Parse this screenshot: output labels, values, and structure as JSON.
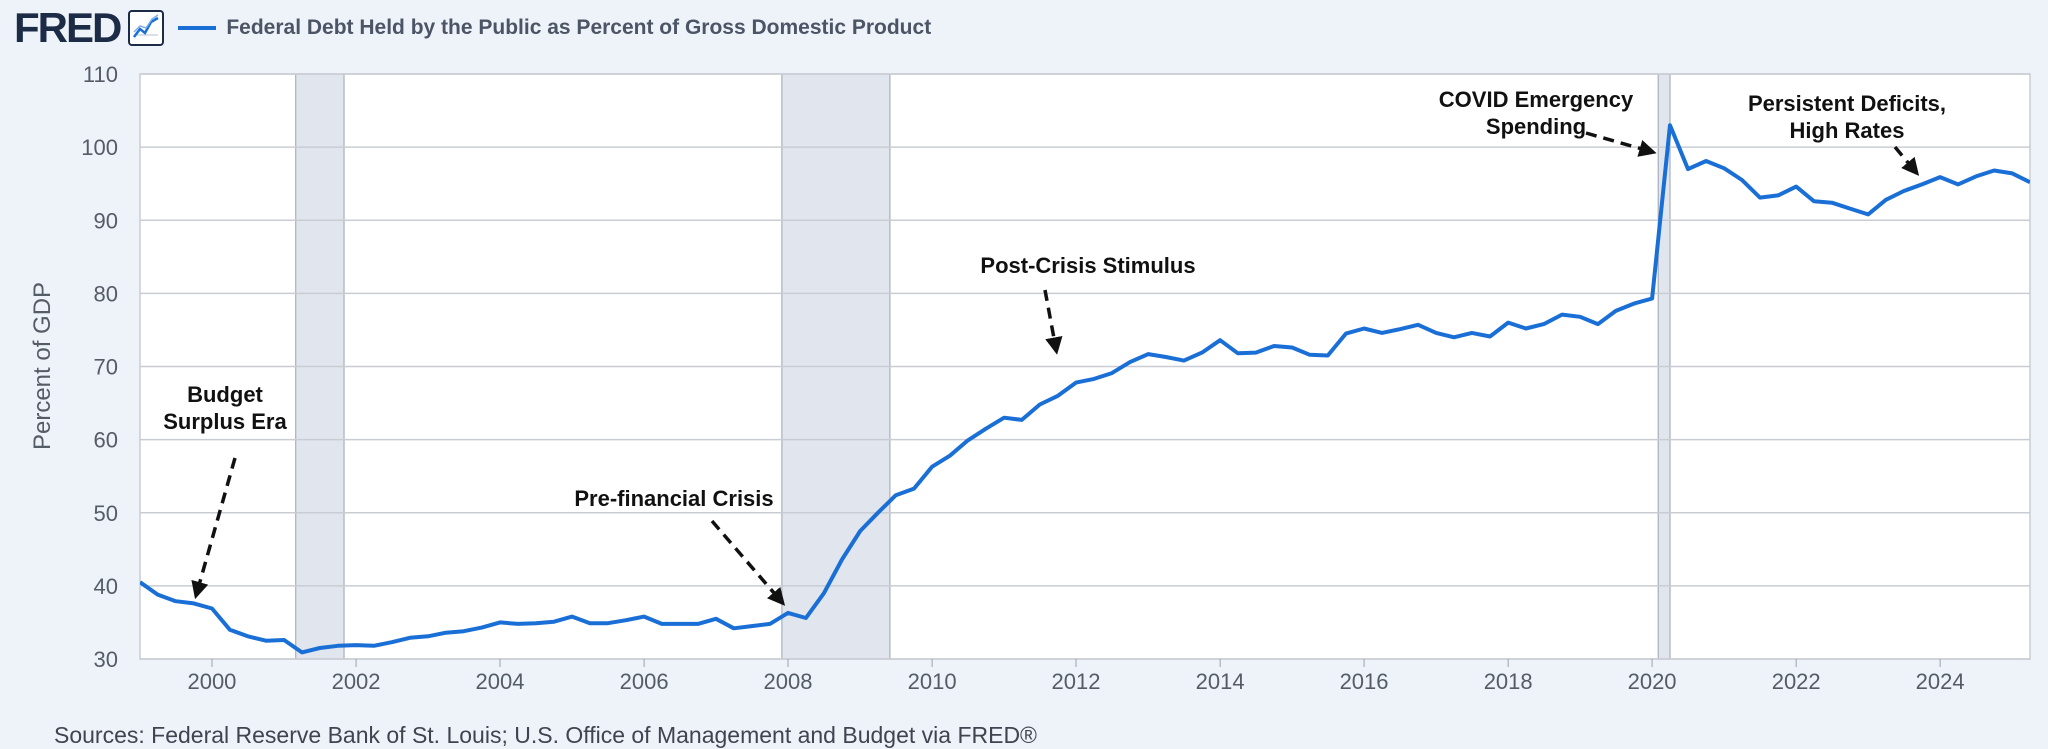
{
  "header": {
    "logo_text": "FRED",
    "logo_icon": "line-chart-icon",
    "series_title": "Federal Debt Held by the Public as Percent of Gross Domestic Product"
  },
  "source": "Sources: Federal Reserve Bank of St. Louis; U.S. Office of Management and Budget via FRED®",
  "chart_data": {
    "type": "line",
    "title": "Federal Debt Held by the Public as Percent of Gross Domestic Product",
    "xlabel": "",
    "ylabel": "Percent of GDP",
    "xlim": [
      "1999-01-01",
      "2025-04-01"
    ],
    "ylim": [
      30,
      110
    ],
    "y_ticks": [
      30,
      40,
      50,
      60,
      70,
      80,
      90,
      100,
      110
    ],
    "x_ticks": [
      "2000",
      "2002",
      "2004",
      "2006",
      "2008",
      "2010",
      "2012",
      "2014",
      "2016",
      "2018",
      "2020",
      "2022",
      "2024"
    ],
    "grid": "horizontal",
    "colors": {
      "line": "#1a6fd6",
      "recession": "#e1e6ee",
      "background": "#eef3fa",
      "plot": "#ffffff"
    },
    "recessions": [
      {
        "start": "2001-03-01",
        "end": "2001-11-01"
      },
      {
        "start": "2007-12-01",
        "end": "2009-06-01"
      },
      {
        "start": "2020-02-01",
        "end": "2020-04-01"
      }
    ],
    "series": [
      {
        "name": "Federal Debt Held by the Public as Percent of Gross Domestic Product",
        "color": "#1a6fd6",
        "points": [
          [
            "1999-01-01",
            40.5
          ],
          [
            "1999-04-01",
            38.8
          ],
          [
            "1999-07-01",
            37.9
          ],
          [
            "1999-10-01",
            37.6
          ],
          [
            "2000-01-01",
            36.9
          ],
          [
            "2000-04-01",
            34.0
          ],
          [
            "2000-07-01",
            33.1
          ],
          [
            "2000-10-01",
            32.5
          ],
          [
            "2001-01-01",
            32.6
          ],
          [
            "2001-04-01",
            30.9
          ],
          [
            "2001-07-01",
            31.5
          ],
          [
            "2001-10-01",
            31.8
          ],
          [
            "2002-01-01",
            31.9
          ],
          [
            "2002-04-01",
            31.8
          ],
          [
            "2002-07-01",
            32.3
          ],
          [
            "2002-10-01",
            32.9
          ],
          [
            "2003-01-01",
            33.1
          ],
          [
            "2003-04-01",
            33.6
          ],
          [
            "2003-07-01",
            33.8
          ],
          [
            "2003-10-01",
            34.3
          ],
          [
            "2004-01-01",
            35.0
          ],
          [
            "2004-04-01",
            34.8
          ],
          [
            "2004-07-01",
            34.9
          ],
          [
            "2004-10-01",
            35.1
          ],
          [
            "2005-01-01",
            35.8
          ],
          [
            "2005-04-01",
            34.9
          ],
          [
            "2005-07-01",
            34.9
          ],
          [
            "2005-10-01",
            35.3
          ],
          [
            "2006-01-01",
            35.8
          ],
          [
            "2006-04-01",
            34.8
          ],
          [
            "2006-07-01",
            34.8
          ],
          [
            "2006-10-01",
            34.8
          ],
          [
            "2007-01-01",
            35.5
          ],
          [
            "2007-04-01",
            34.2
          ],
          [
            "2007-07-01",
            34.5
          ],
          [
            "2007-10-01",
            34.8
          ],
          [
            "2008-01-01",
            36.3
          ],
          [
            "2008-04-01",
            35.6
          ],
          [
            "2008-07-01",
            39.0
          ],
          [
            "2008-10-01",
            43.6
          ],
          [
            "2009-01-01",
            47.5
          ],
          [
            "2009-04-01",
            50.0
          ],
          [
            "2009-07-01",
            52.4
          ],
          [
            "2009-10-01",
            53.3
          ],
          [
            "2010-01-01",
            56.3
          ],
          [
            "2010-04-01",
            57.8
          ],
          [
            "2010-07-01",
            59.9
          ],
          [
            "2010-10-01",
            61.5
          ],
          [
            "2011-01-01",
            63.0
          ],
          [
            "2011-04-01",
            62.7
          ],
          [
            "2011-07-01",
            64.8
          ],
          [
            "2011-10-01",
            66.0
          ],
          [
            "2012-01-01",
            67.8
          ],
          [
            "2012-04-01",
            68.3
          ],
          [
            "2012-07-01",
            69.1
          ],
          [
            "2012-10-01",
            70.6
          ],
          [
            "2013-01-01",
            71.7
          ],
          [
            "2013-04-01",
            71.3
          ],
          [
            "2013-07-01",
            70.8
          ],
          [
            "2013-10-01",
            71.9
          ],
          [
            "2014-01-01",
            73.6
          ],
          [
            "2014-04-01",
            71.8
          ],
          [
            "2014-07-01",
            71.9
          ],
          [
            "2014-10-01",
            72.8
          ],
          [
            "2015-01-01",
            72.6
          ],
          [
            "2015-04-01",
            71.6
          ],
          [
            "2015-07-01",
            71.5
          ],
          [
            "2015-10-01",
            74.5
          ],
          [
            "2016-01-01",
            75.2
          ],
          [
            "2016-04-01",
            74.6
          ],
          [
            "2016-07-01",
            75.1
          ],
          [
            "2016-10-01",
            75.7
          ],
          [
            "2017-01-01",
            74.6
          ],
          [
            "2017-04-01",
            74.0
          ],
          [
            "2017-07-01",
            74.6
          ],
          [
            "2017-10-01",
            74.1
          ],
          [
            "2018-01-01",
            76.0
          ],
          [
            "2018-04-01",
            75.2
          ],
          [
            "2018-07-01",
            75.8
          ],
          [
            "2018-10-01",
            77.1
          ],
          [
            "2019-01-01",
            76.8
          ],
          [
            "2019-04-01",
            75.8
          ],
          [
            "2019-07-01",
            77.6
          ],
          [
            "2019-10-01",
            78.6
          ],
          [
            "2020-01-01",
            79.3
          ],
          [
            "2020-04-01",
            103.0
          ],
          [
            "2020-07-01",
            97.0
          ],
          [
            "2020-10-01",
            98.1
          ],
          [
            "2021-01-01",
            97.1
          ],
          [
            "2021-04-01",
            95.5
          ],
          [
            "2021-07-01",
            93.1
          ],
          [
            "2021-10-01",
            93.4
          ],
          [
            "2022-01-01",
            94.6
          ],
          [
            "2022-04-01",
            92.6
          ],
          [
            "2022-07-01",
            92.4
          ],
          [
            "2022-10-01",
            91.6
          ],
          [
            "2023-01-01",
            90.8
          ],
          [
            "2023-04-01",
            92.8
          ],
          [
            "2023-07-01",
            94.0
          ],
          [
            "2023-10-01",
            94.9
          ],
          [
            "2024-01-01",
            95.9
          ],
          [
            "2024-04-01",
            94.9
          ],
          [
            "2024-07-01",
            96.0
          ],
          [
            "2024-10-01",
            96.8
          ],
          [
            "2025-01-01",
            96.4
          ],
          [
            "2025-04-01",
            95.2
          ]
        ]
      }
    ],
    "annotations": [
      {
        "lines": [
          "Budget",
          "Surplus Era"
        ],
        "target": [
          "1999-10-01",
          37.6
        ]
      },
      {
        "lines": [
          "Pre-financial Crisis"
        ],
        "target": [
          "2008-01-01",
          36.8
        ]
      },
      {
        "lines": [
          "Post-Crisis Stimulus"
        ],
        "target": [
          "2011-10-01",
          71.0
        ]
      },
      {
        "lines": [
          "COVID Emergency",
          "Spending"
        ],
        "target": [
          "2020-02-15",
          99.0
        ]
      },
      {
        "lines": [
          "Persistent Deficits,",
          "High Rates"
        ],
        "target": [
          "2023-10-01",
          95.6
        ]
      }
    ]
  }
}
